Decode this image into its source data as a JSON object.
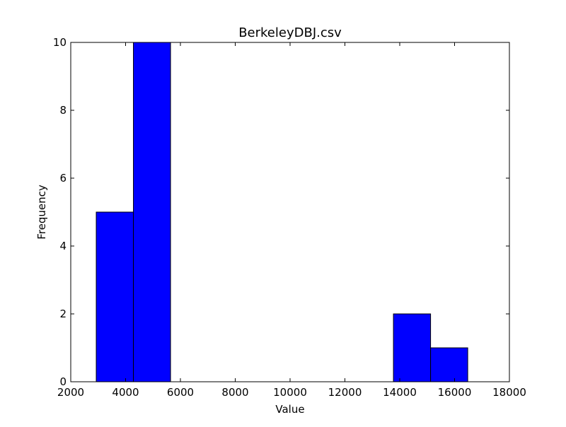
{
  "chart_data": {
    "type": "bar",
    "title": "BerkeleyDBJ.csv",
    "xlabel": "Value",
    "ylabel": "Frequency",
    "xlim": [
      2000,
      18000
    ],
    "ylim": [
      0,
      10
    ],
    "xticks": [
      2000,
      4000,
      6000,
      8000,
      10000,
      12000,
      14000,
      16000,
      18000
    ],
    "yticks": [
      0,
      2,
      4,
      6,
      8,
      10
    ],
    "grid": false,
    "legend": "none",
    "bar_color": "#0000ff",
    "bar_edge_color": "#000000",
    "bins": [
      {
        "x0": 2930,
        "x1": 4285,
        "count": 5
      },
      {
        "x0": 4285,
        "x1": 5640,
        "count": 10
      },
      {
        "x0": 5640,
        "x1": 6995,
        "count": 0
      },
      {
        "x0": 6995,
        "x1": 8350,
        "count": 0
      },
      {
        "x0": 8350,
        "x1": 9705,
        "count": 0
      },
      {
        "x0": 9705,
        "x1": 11060,
        "count": 0
      },
      {
        "x0": 11060,
        "x1": 12415,
        "count": 0
      },
      {
        "x0": 12415,
        "x1": 13770,
        "count": 0
      },
      {
        "x0": 13770,
        "x1": 15125,
        "count": 2
      },
      {
        "x0": 15125,
        "x1": 16480,
        "count": 1
      }
    ]
  }
}
